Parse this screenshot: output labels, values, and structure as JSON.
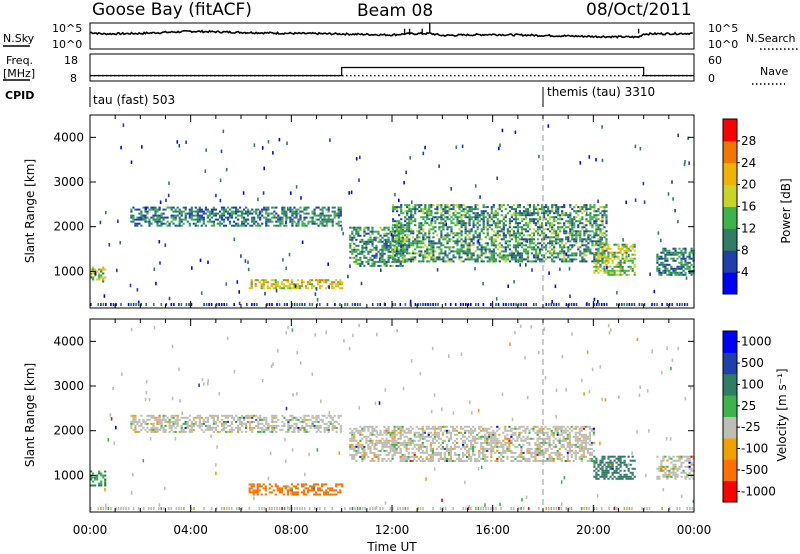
{
  "header": {
    "station": "Goose Bay (fitACF)",
    "beam": "Beam 08",
    "date": "08/Oct/2011"
  },
  "left_labels": {
    "nsky": "N.Sky",
    "freq_line1": "Freq.",
    "freq_line2": "[MHz]",
    "cpid": "CPID"
  },
  "right_labels": {
    "nsearch": "N.Search",
    "nave": "Nave"
  },
  "cpid_segments": [
    {
      "label": "tau (fast) 503",
      "start_hour": 0
    },
    {
      "label": "themis (tau) 3310",
      "start_hour": 18
    }
  ],
  "colors": {
    "power": [
      "#0000ff",
      "#1f3faa",
      "#2e7d64",
      "#3cb44b",
      "#c8d42a",
      "#f0b400",
      "#f07800",
      "#ff0000"
    ],
    "velocity": [
      "#ff0000",
      "#ff7000",
      "#f0a000",
      "#bebeb4",
      "#bebeb4",
      "#3cb44b",
      "#2e7d64",
      "#1f3faa",
      "#0000ff"
    ]
  },
  "chart_data": [
    {
      "type": "line",
      "panel": "noise",
      "left_ylabel": "N.Sky",
      "right_ylabel": "N.Search",
      "left_ticks": [
        "10^5",
        "10^0"
      ],
      "right_ticks": [
        "10^5",
        "10^0"
      ],
      "x_hours": [
        0,
        0.5,
        2,
        4,
        6,
        8,
        10,
        12,
        12.5,
        13.5,
        14,
        16,
        18,
        20,
        21.8,
        22,
        24
      ],
      "nsky_log10": [
        3.2,
        2.9,
        3.0,
        3.4,
        3.2,
        3.0,
        2.9,
        2.7,
        2.9,
        3.0,
        2.6,
        2.8,
        2.6,
        2.4,
        2.3,
        2.9,
        3.0
      ]
    },
    {
      "type": "line",
      "panel": "frequency",
      "left_ylabel": "Freq. [MHz]",
      "right_ylabel": "Nave",
      "left_ticks": [
        "18",
        "8"
      ],
      "right_ticks": [
        "60",
        "0"
      ],
      "freq_steps": [
        {
          "from_hour": 0,
          "to_hour": 10,
          "mhz": 10
        },
        {
          "from_hour": 10,
          "to_hour": 22,
          "mhz": 13
        },
        {
          "from_hour": 22,
          "to_hour": 24,
          "mhz": 10
        }
      ],
      "nave_level": 12
    },
    {
      "type": "heatmap",
      "panel": "power",
      "ylabel": "Slant Range [km]",
      "yticks": [
        1000,
        2000,
        3000,
        4000
      ],
      "ylim": [
        180,
        4500
      ],
      "xlim": [
        0,
        24
      ],
      "colorbar_label": "Power [dB]",
      "colorbar_ticks": [
        4,
        8,
        12,
        16,
        20,
        24,
        28
      ],
      "colorbar_range": [
        0,
        32
      ],
      "echo_regions": [
        {
          "t0": 0.0,
          "t1": 0.6,
          "r0": 750,
          "r1": 1100,
          "value": 16
        },
        {
          "t0": 1.6,
          "t1": 10.0,
          "r0": 2000,
          "r1": 2450,
          "value": 10
        },
        {
          "t0": 6.3,
          "t1": 10.0,
          "r0": 600,
          "r1": 800,
          "value": 20
        },
        {
          "t0": 10.3,
          "t1": 12.5,
          "r0": 1100,
          "r1": 2000,
          "value": 11
        },
        {
          "t0": 12.0,
          "t1": 20.5,
          "r0": 1200,
          "r1": 2500,
          "value": 12
        },
        {
          "t0": 20.0,
          "t1": 21.6,
          "r0": 900,
          "r1": 1600,
          "value": 16
        },
        {
          "t0": 22.5,
          "t1": 24.0,
          "r0": 900,
          "r1": 1500,
          "value": 10
        }
      ]
    },
    {
      "type": "heatmap",
      "panel": "velocity",
      "ylabel": "Slant Range [km]",
      "xlabel": "Time UT",
      "yticks": [
        1000,
        2000,
        3000,
        4000
      ],
      "ylim": [
        180,
        4500
      ],
      "xlim": [
        0,
        24
      ],
      "xticks": [
        "00:00",
        "04:00",
        "08:00",
        "12:00",
        "16:00",
        "20:00",
        "00:00"
      ],
      "colorbar_label": "Velocity [m s⁻¹]",
      "colorbar_ticks": [
        "1000",
        "500",
        "100",
        "25",
        "-25",
        "-100",
        "-500",
        "-1000"
      ],
      "echo_regions": [
        {
          "t0": 0.0,
          "t1": 0.6,
          "r0": 750,
          "r1": 1100,
          "value": 100
        },
        {
          "t0": 1.6,
          "t1": 10.0,
          "r0": 1950,
          "r1": 2350,
          "value": 0
        },
        {
          "t0": 6.3,
          "t1": 10.0,
          "r0": 550,
          "r1": 800,
          "value": -300
        },
        {
          "t0": 10.3,
          "t1": 20.0,
          "r0": 1300,
          "r1": 2100,
          "value": 0
        },
        {
          "t0": 20.0,
          "t1": 21.6,
          "r0": 900,
          "r1": 1400,
          "value": 200
        },
        {
          "t0": 22.5,
          "t1": 24.0,
          "r0": 900,
          "r1": 1400,
          "value": 0
        }
      ]
    }
  ]
}
